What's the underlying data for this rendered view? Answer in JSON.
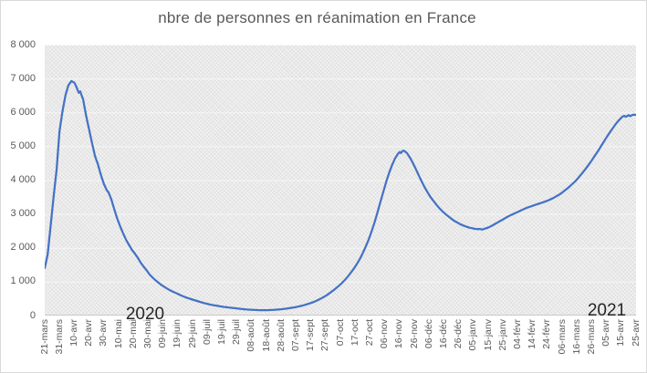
{
  "chart_data": {
    "type": "line",
    "title": "nbre de personnes en réanimation en France",
    "xlabel": "",
    "ylabel": "",
    "ylim": [
      0,
      8000
    ],
    "grid": true,
    "legend": "none",
    "y_ticks": [
      {
        "label": "8 000",
        "value": 8000
      },
      {
        "label": "7 000",
        "value": 7000
      },
      {
        "label": "6 000",
        "value": 6000
      },
      {
        "label": "5 000",
        "value": 5000
      },
      {
        "label": "4 000",
        "value": 4000
      },
      {
        "label": "3 000",
        "value": 3000
      },
      {
        "label": "2 000",
        "value": 2000
      },
      {
        "label": "1 000",
        "value": 1000
      },
      {
        "label": "0",
        "value": 0
      }
    ],
    "categories": [
      "21-mars",
      "31-mars",
      "10-avr",
      "20-avr",
      "30-avr",
      "10-mai",
      "20-mai",
      "30-mai",
      "09-juin",
      "19-juin",
      "29-juin",
      "09-juil",
      "19-juil",
      "29-juil",
      "08-août",
      "18-août",
      "28-août",
      "07-sept",
      "17-sept",
      "27-sept",
      "07-oct",
      "17-oct",
      "27-oct",
      "06-nov",
      "16-nov",
      "26-nov",
      "06-déc",
      "16-déc",
      "26-déc",
      "05-janv",
      "15-janv",
      "25-janv",
      "04-févr",
      "14-févr",
      "24-févr",
      "06-mars",
      "16-mars",
      "26-mars",
      "05-avr",
      "15-avr",
      "25-avr"
    ],
    "category_step_days": 10,
    "x_total_days": 400,
    "annotations": {
      "left": "2020",
      "right": "2021"
    },
    "series": [
      {
        "color": "#4472C4",
        "points": [
          [
            0,
            1400
          ],
          [
            2,
            1800
          ],
          [
            4,
            2650
          ],
          [
            6,
            3500
          ],
          [
            8,
            4300
          ],
          [
            10,
            5440
          ],
          [
            12,
            6020
          ],
          [
            14,
            6500
          ],
          [
            16,
            6800
          ],
          [
            18,
            6925
          ],
          [
            20,
            6880
          ],
          [
            21,
            6800
          ],
          [
            23,
            6580
          ],
          [
            24,
            6620
          ],
          [
            26,
            6380
          ],
          [
            28,
            5900
          ],
          [
            30,
            5500
          ],
          [
            32,
            5100
          ],
          [
            34,
            4710
          ],
          [
            36,
            4470
          ],
          [
            38,
            4150
          ],
          [
            40,
            3890
          ],
          [
            42,
            3700
          ],
          [
            43,
            3650
          ],
          [
            45,
            3440
          ],
          [
            47,
            3150
          ],
          [
            49,
            2870
          ],
          [
            51,
            2640
          ],
          [
            53,
            2430
          ],
          [
            55,
            2240
          ],
          [
            57,
            2090
          ],
          [
            59,
            1940
          ],
          [
            61,
            1830
          ],
          [
            63,
            1700
          ],
          [
            65,
            1560
          ],
          [
            67,
            1440
          ],
          [
            69,
            1330
          ],
          [
            71,
            1210
          ],
          [
            73,
            1120
          ],
          [
            75,
            1040
          ],
          [
            77,
            970
          ],
          [
            79,
            900
          ],
          [
            81,
            845
          ],
          [
            83,
            790
          ],
          [
            85,
            740
          ],
          [
            87,
            700
          ],
          [
            89,
            660
          ],
          [
            91,
            620
          ],
          [
            93,
            580
          ],
          [
            95,
            545
          ],
          [
            97,
            515
          ],
          [
            99,
            485
          ],
          [
            101,
            458
          ],
          [
            103,
            430
          ],
          [
            105,
            405
          ],
          [
            107,
            380
          ],
          [
            109,
            355
          ],
          [
            111,
            335
          ],
          [
            113,
            315
          ],
          [
            115,
            300
          ],
          [
            117,
            285
          ],
          [
            119,
            270
          ],
          [
            121,
            255
          ],
          [
            123,
            245
          ],
          [
            125,
            235
          ],
          [
            127,
            225
          ],
          [
            129,
            215
          ],
          [
            131,
            205
          ],
          [
            133,
            195
          ],
          [
            135,
            185
          ],
          [
            137,
            179
          ],
          [
            139,
            172
          ],
          [
            141,
            168
          ],
          [
            143,
            163
          ],
          [
            145,
            160
          ],
          [
            147,
            158
          ],
          [
            149,
            158
          ],
          [
            151,
            160
          ],
          [
            153,
            164
          ],
          [
            155,
            168
          ],
          [
            157,
            175
          ],
          [
            159,
            183
          ],
          [
            161,
            192
          ],
          [
            163,
            202
          ],
          [
            165,
            215
          ],
          [
            167,
            228
          ],
          [
            169,
            243
          ],
          [
            171,
            260
          ],
          [
            173,
            280
          ],
          [
            175,
            303
          ],
          [
            177,
            328
          ],
          [
            179,
            355
          ],
          [
            181,
            385
          ],
          [
            183,
            420
          ],
          [
            185,
            460
          ],
          [
            187,
            505
          ],
          [
            189,
            555
          ],
          [
            191,
            610
          ],
          [
            193,
            670
          ],
          [
            195,
            735
          ],
          [
            197,
            805
          ],
          [
            199,
            880
          ],
          [
            201,
            960
          ],
          [
            203,
            1050
          ],
          [
            205,
            1150
          ],
          [
            207,
            1260
          ],
          [
            209,
            1380
          ],
          [
            211,
            1510
          ],
          [
            213,
            1660
          ],
          [
            215,
            1830
          ],
          [
            217,
            2020
          ],
          [
            219,
            2230
          ],
          [
            221,
            2470
          ],
          [
            223,
            2740
          ],
          [
            225,
            3030
          ],
          [
            227,
            3340
          ],
          [
            229,
            3650
          ],
          [
            231,
            3950
          ],
          [
            233,
            4220
          ],
          [
            235,
            4450
          ],
          [
            237,
            4640
          ],
          [
            239,
            4780
          ],
          [
            240,
            4830
          ],
          [
            241,
            4800
          ],
          [
            242,
            4860
          ],
          [
            243,
            4870
          ],
          [
            245,
            4800
          ],
          [
            247,
            4670
          ],
          [
            249,
            4510
          ],
          [
            251,
            4330
          ],
          [
            253,
            4140
          ],
          [
            255,
            3960
          ],
          [
            257,
            3790
          ],
          [
            259,
            3640
          ],
          [
            261,
            3500
          ],
          [
            263,
            3380
          ],
          [
            265,
            3270
          ],
          [
            267,
            3170
          ],
          [
            269,
            3080
          ],
          [
            271,
            3000
          ],
          [
            273,
            2930
          ],
          [
            275,
            2860
          ],
          [
            277,
            2800
          ],
          [
            279,
            2750
          ],
          [
            281,
            2700
          ],
          [
            283,
            2660
          ],
          [
            285,
            2630
          ],
          [
            287,
            2600
          ],
          [
            289,
            2580
          ],
          [
            291,
            2560
          ],
          [
            293,
            2550
          ],
          [
            294,
            2560
          ],
          [
            296,
            2540
          ],
          [
            298,
            2570
          ],
          [
            300,
            2600
          ],
          [
            302,
            2640
          ],
          [
            304,
            2690
          ],
          [
            306,
            2740
          ],
          [
            308,
            2790
          ],
          [
            310,
            2840
          ],
          [
            312,
            2890
          ],
          [
            314,
            2940
          ],
          [
            316,
            2980
          ],
          [
            318,
            3020
          ],
          [
            320,
            3060
          ],
          [
            322,
            3100
          ],
          [
            324,
            3140
          ],
          [
            326,
            3180
          ],
          [
            328,
            3210
          ],
          [
            330,
            3240
          ],
          [
            332,
            3270
          ],
          [
            334,
            3300
          ],
          [
            336,
            3330
          ],
          [
            338,
            3360
          ],
          [
            340,
            3390
          ],
          [
            342,
            3430
          ],
          [
            344,
            3470
          ],
          [
            346,
            3520
          ],
          [
            348,
            3570
          ],
          [
            350,
            3630
          ],
          [
            352,
            3700
          ],
          [
            354,
            3770
          ],
          [
            356,
            3850
          ],
          [
            358,
            3930
          ],
          [
            360,
            4020
          ],
          [
            362,
            4120
          ],
          [
            364,
            4230
          ],
          [
            366,
            4340
          ],
          [
            368,
            4460
          ],
          [
            370,
            4580
          ],
          [
            372,
            4710
          ],
          [
            374,
            4840
          ],
          [
            376,
            4980
          ],
          [
            378,
            5120
          ],
          [
            380,
            5260
          ],
          [
            382,
            5390
          ],
          [
            384,
            5520
          ],
          [
            386,
            5640
          ],
          [
            388,
            5750
          ],
          [
            390,
            5840
          ],
          [
            391,
            5880
          ],
          [
            392,
            5900
          ],
          [
            393,
            5870
          ],
          [
            394,
            5890
          ],
          [
            395,
            5920
          ],
          [
            396,
            5890
          ],
          [
            398,
            5930
          ],
          [
            400,
            5925
          ]
        ]
      }
    ]
  },
  "colors": {
    "line": "#4472C4",
    "axis_text": "#595959",
    "title_text": "#595959",
    "annotation_text": "#262626",
    "plot_fill": "#e9e9e9",
    "gridline": "#f8f8f8",
    "axis_line": "#c9c9c9",
    "chart_border": "#d9d9d9"
  }
}
